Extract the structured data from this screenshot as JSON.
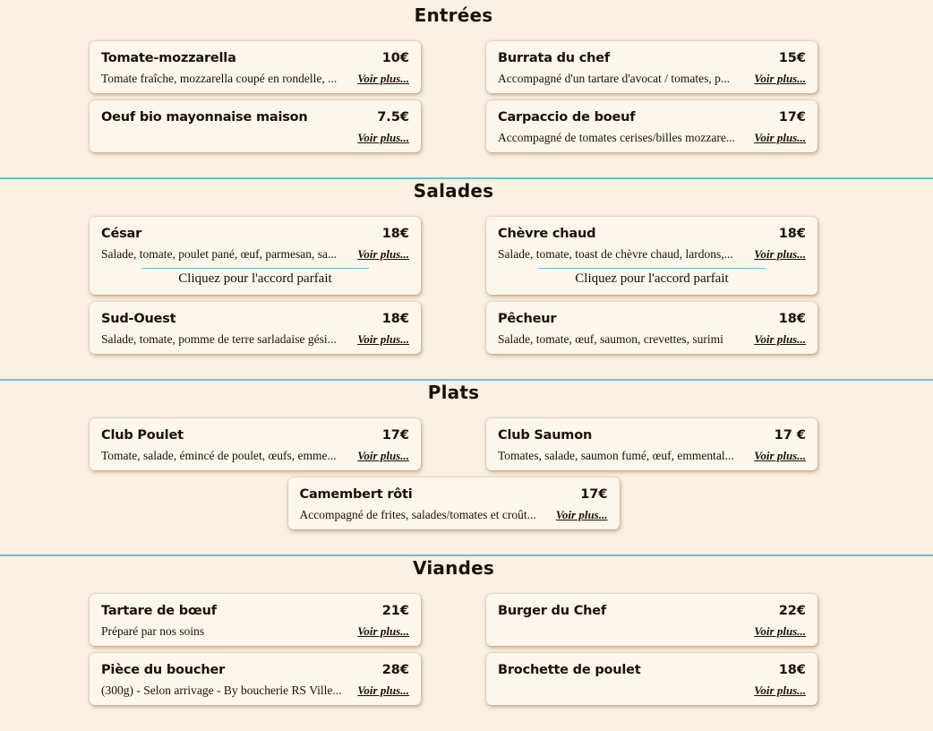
{
  "theme": {
    "background": "#fbf0e1",
    "card_background": "#fdf6ea",
    "divider_teal": "#5ec8d0",
    "text_color": "#1b1108"
  },
  "ui": {
    "voir_plus_label": "Voir plus...",
    "accord_label": "Cliquez pour l'accord parfait"
  },
  "sections": [
    {
      "title": "Entrées",
      "items": [
        {
          "name": "Tomate-mozzarella",
          "price": "10€",
          "description": "Tomate fraîche, mozzarella coupé en rondelle, ..."
        },
        {
          "name": "Burrata du chef",
          "price": "15€",
          "description": "Accompagné d'un tartare d'avocat / tomates, p..."
        },
        {
          "name": "Oeuf bio mayonnaise maison",
          "price": "7.5€",
          "description": ""
        },
        {
          "name": "Carpaccio de boeuf",
          "price": "17€",
          "description": "Accompagné de tomates cerises/billes mozzare..."
        }
      ]
    },
    {
      "title": "Salades",
      "items": [
        {
          "name": "César",
          "price": "18€",
          "description": "Salade, tomate, poulet pané, œuf, parmesan, sa...",
          "accord": true
        },
        {
          "name": "Chèvre chaud",
          "price": "18€",
          "description": "Salade, tomate, toast de chèvre chaud, lardons,...",
          "accord": true
        },
        {
          "name": "Sud-Ouest",
          "price": "18€",
          "description": "Salade, tomate, pomme de terre sarladaise gési..."
        },
        {
          "name": "Pêcheur",
          "price": "18€",
          "description": "Salade, tomate, œuf, saumon, crevettes, surimi"
        }
      ]
    },
    {
      "title": "Plats",
      "items": [
        {
          "name": "Club Poulet",
          "price": "17€",
          "description": "Tomate, salade, émincé de poulet, œufs, emme..."
        },
        {
          "name": "Club Saumon",
          "price": "17 €",
          "description": "Tomates, salade, saumon fumé, œuf, emmental..."
        },
        {
          "name": "Camembert rôti",
          "price": "17€",
          "description": "Accompagné de frites, salades/tomates et croût...",
          "center": true
        }
      ]
    },
    {
      "title": "Viandes",
      "items": [
        {
          "name": "Tartare de bœuf",
          "price": "21€",
          "description": "Préparé par nos soins"
        },
        {
          "name": "Burger du Chef",
          "price": "22€",
          "description": ""
        },
        {
          "name": "Pièce du boucher",
          "price": "28€",
          "description": "(300g) - Selon arrivage - By boucherie RS Ville..."
        },
        {
          "name": "Brochette de poulet",
          "price": "18€",
          "description": ""
        }
      ]
    }
  ]
}
